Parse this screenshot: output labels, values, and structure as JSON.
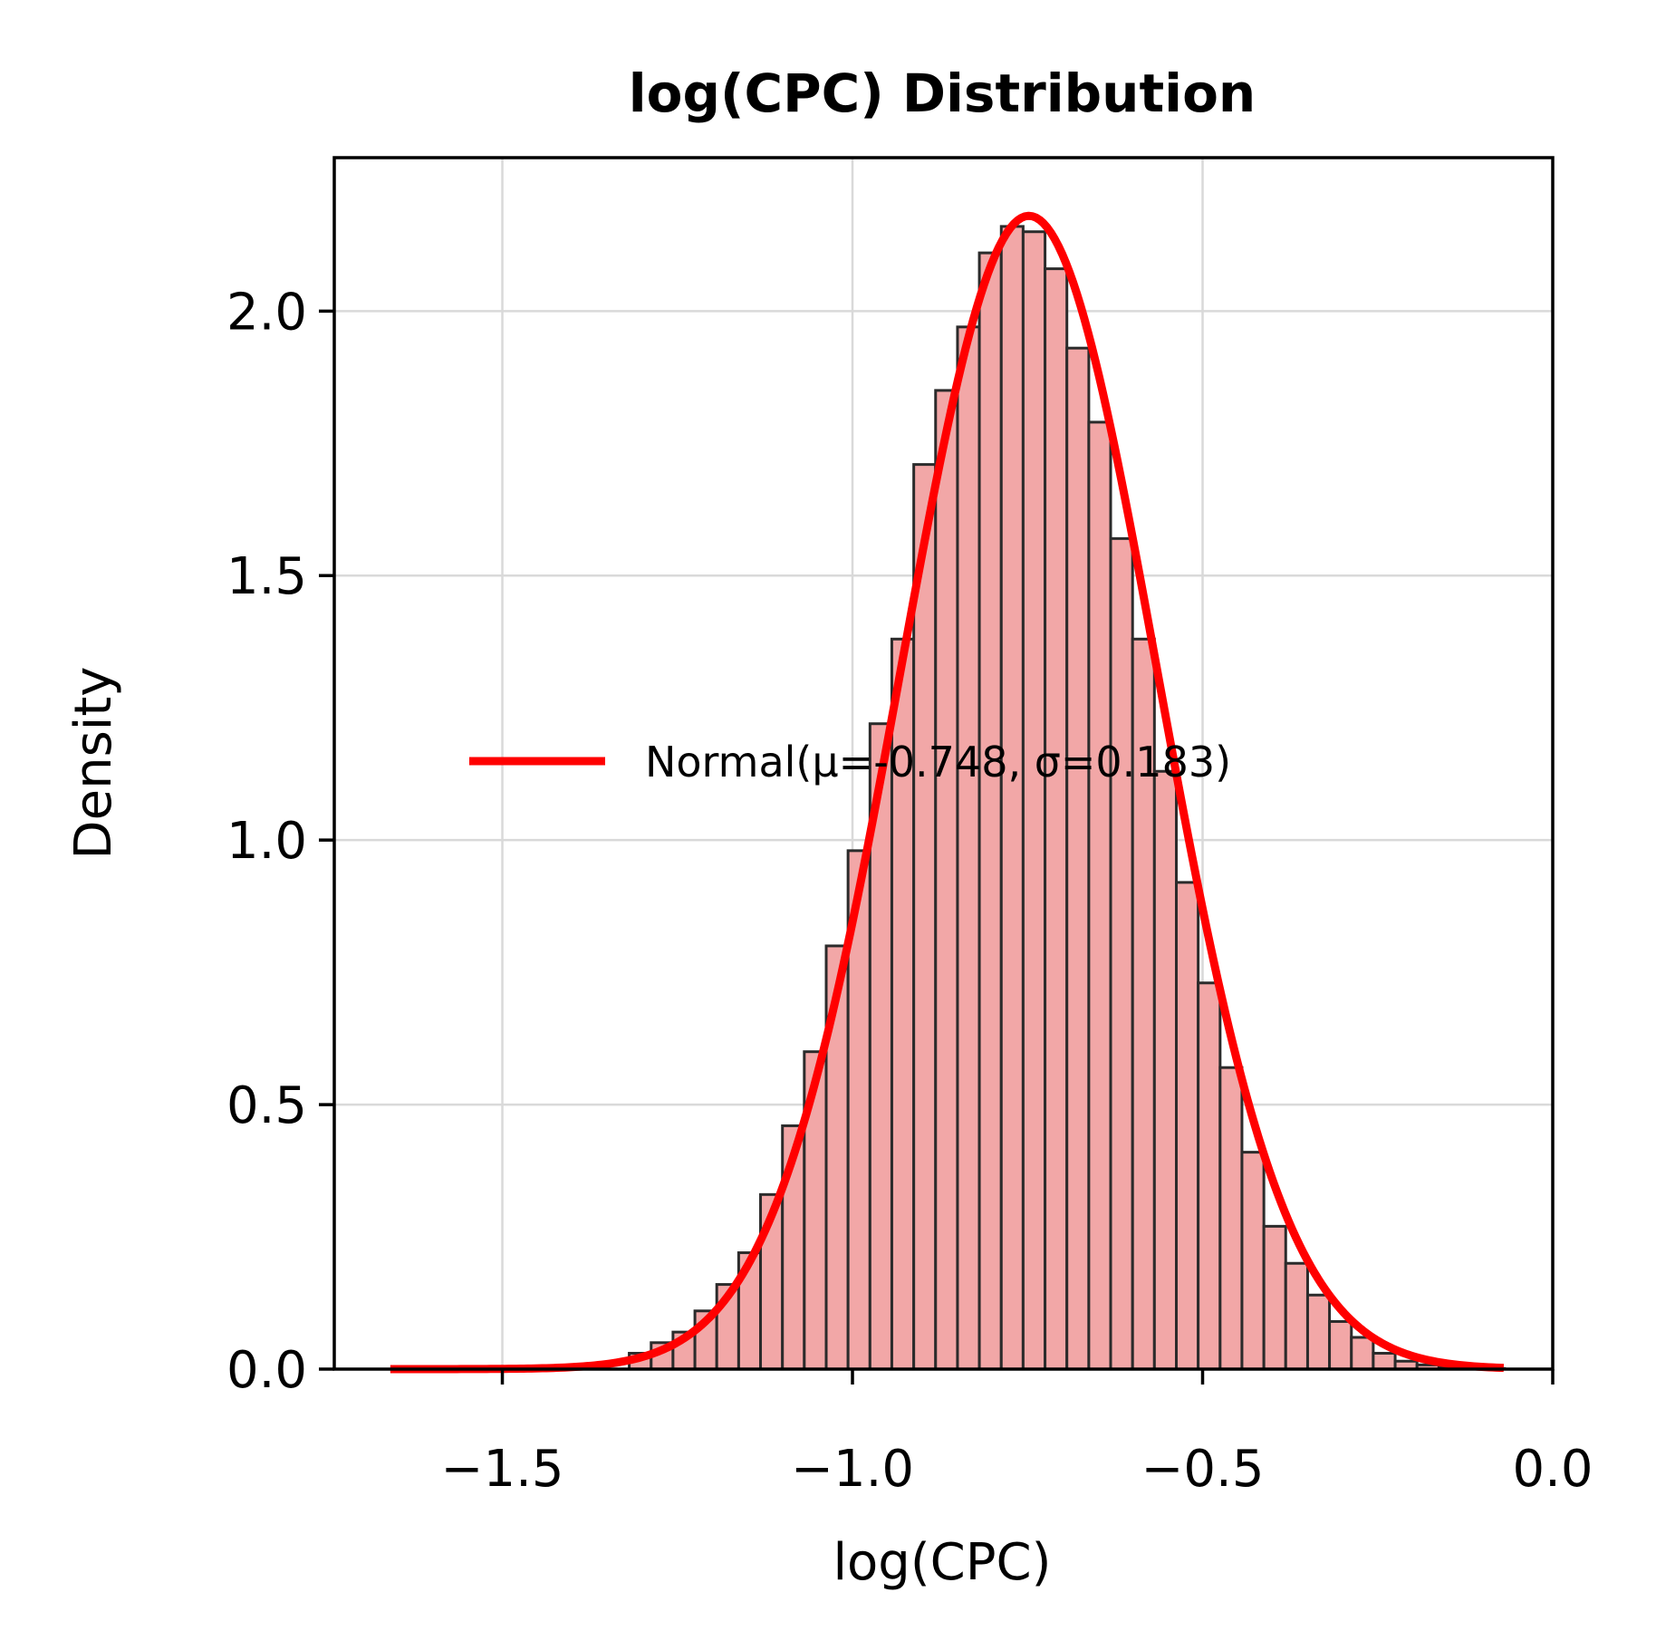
{
  "chart_data": {
    "type": "bar",
    "title": "log(CPC) Distribution",
    "xlabel": "log(CPC)",
    "ylabel": "Density",
    "xlim": [
      -1.74,
      0.0
    ],
    "ylim": [
      0,
      2.29
    ],
    "xticks": [
      -1.5,
      -1.0,
      -0.5,
      0.0
    ],
    "xtick_labels": [
      "−1.5",
      "−1.0",
      "−0.5",
      "0.0"
    ],
    "yticks": [
      0.0,
      0.5,
      1.0,
      1.5,
      2.0
    ],
    "ytick_labels": [
      "0.0",
      "0.5",
      "1.0",
      "1.5",
      "2.0"
    ],
    "grid": true,
    "histogram": {
      "bin_edges": [
        -1.6625,
        -1.6313,
        -1.6,
        -1.5688,
        -1.5375,
        -1.5063,
        -1.475,
        -1.4438,
        -1.4125,
        -1.3813,
        -1.35,
        -1.3188,
        -1.2875,
        -1.2563,
        -1.225,
        -1.1938,
        -1.1625,
        -1.1313,
        -1.1,
        -1.0688,
        -1.0375,
        -1.0063,
        -0.975,
        -0.9438,
        -0.9125,
        -0.8813,
        -0.85,
        -0.8188,
        -0.7875,
        -0.7563,
        -0.725,
        -0.6938,
        -0.6625,
        -0.6313,
        -0.6,
        -0.5688,
        -0.5375,
        -0.5063,
        -0.475,
        -0.4438,
        -0.4125,
        -0.3813,
        -0.35,
        -0.3188,
        -0.2875,
        -0.2563,
        -0.225,
        -0.1938,
        -0.1625,
        -0.1313,
        -0.1,
        -0.0688
      ],
      "values": [
        0.0,
        0.0,
        0.0,
        0.0,
        0.0,
        0.0,
        0.0,
        0.0,
        0.0,
        0.0,
        0.0,
        0.03,
        0.05,
        0.07,
        0.11,
        0.16,
        0.22,
        0.33,
        0.46,
        0.6,
        0.8,
        0.98,
        1.22,
        1.38,
        1.71,
        1.85,
        1.97,
        2.11,
        2.16,
        2.15,
        2.08,
        1.93,
        1.79,
        1.57,
        1.38,
        1.13,
        0.92,
        0.73,
        0.57,
        0.41,
        0.27,
        0.2,
        0.14,
        0.09,
        0.06,
        0.03,
        0.015,
        0.008,
        0.004,
        0.002,
        0.001
      ],
      "fill_color": "#f2a7a7",
      "edge_color": "#2b2b2b"
    },
    "series": [
      {
        "name": "Normal(μ=-0.748, σ=0.183)",
        "type": "line",
        "mu": -0.748,
        "sigma": 0.183,
        "x_range": [
          -1.66,
          -0.07
        ],
        "color": "#ff0000"
      }
    ],
    "legend_position": "center-right"
  }
}
